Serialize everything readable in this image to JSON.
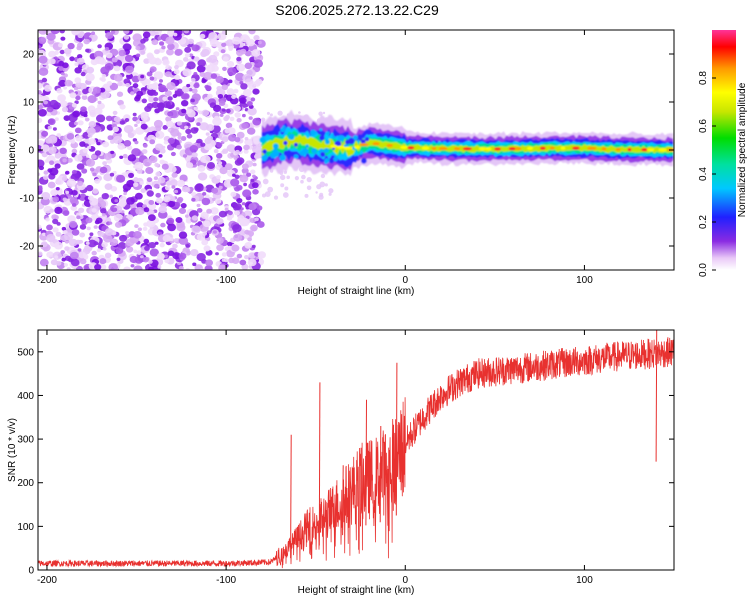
{
  "title": "S206.2025.272.13.22.C29",
  "chart_data": [
    {
      "type": "heatmap",
      "name": "spectrogram",
      "xlabel": "Height of straight line (km)",
      "ylabel": "Frequency (Hz)",
      "xlim": [
        -205,
        150
      ],
      "ylim": [
        -25,
        25
      ],
      "xticks": [
        -200,
        -100,
        0,
        100
      ],
      "yticks": [
        -20,
        -10,
        0,
        10,
        20
      ],
      "noise_region_x": [
        -205,
        -80
      ],
      "signal_ridge": [
        {
          "x": -80,
          "y": 0.5
        },
        {
          "x": -70,
          "y": 1.5
        },
        {
          "x": -60,
          "y": 2.0
        },
        {
          "x": -50,
          "y": 1.0
        },
        {
          "x": -40,
          "y": 0.8
        },
        {
          "x": -30,
          "y": 0.2
        },
        {
          "x": -20,
          "y": 1.5
        },
        {
          "x": -10,
          "y": 1.0
        },
        {
          "x": 0,
          "y": 0.5
        },
        {
          "x": 20,
          "y": 0.3
        },
        {
          "x": 50,
          "y": 0.2
        },
        {
          "x": 80,
          "y": 0.4
        },
        {
          "x": 100,
          "y": 0.4
        },
        {
          "x": 120,
          "y": 0.1
        },
        {
          "x": 150,
          "y": 0.0
        }
      ],
      "colorbar": {
        "label": "Normalized spectral amplitude",
        "range": [
          0,
          1
        ],
        "ticks": [
          "0.0",
          "0.2",
          "0.4",
          "0.6",
          "0.8"
        ],
        "tick_values": [
          0.0,
          0.2,
          0.4,
          0.6,
          0.8
        ],
        "colormap": [
          "#ffffff",
          "#e9c8f7",
          "#8a2be2",
          "#2020ff",
          "#00c8ff",
          "#00e0a0",
          "#00dd00",
          "#c8e600",
          "#ffff00",
          "#ff9900",
          "#ff0000",
          "#ff3399"
        ]
      }
    },
    {
      "type": "line",
      "name": "snr",
      "xlabel": "Height of straight line (km)",
      "ylabel": "SNR (10 * v/v)",
      "xlim": [
        -205,
        150
      ],
      "ylim": [
        0,
        550
      ],
      "xticks": [
        -200,
        -100,
        0,
        100
      ],
      "yticks": [
        0,
        100,
        200,
        300,
        400,
        500
      ],
      "color": "#e8312f",
      "trend": [
        {
          "x": -205,
          "y": 15
        },
        {
          "x": -100,
          "y": 15
        },
        {
          "x": -75,
          "y": 18
        },
        {
          "x": -65,
          "y": 50
        },
        {
          "x": -55,
          "y": 95
        },
        {
          "x": -45,
          "y": 120
        },
        {
          "x": -35,
          "y": 160
        },
        {
          "x": -25,
          "y": 200
        },
        {
          "x": -15,
          "y": 215
        },
        {
          "x": -5,
          "y": 250
        },
        {
          "x": 0,
          "y": 290
        },
        {
          "x": 10,
          "y": 350
        },
        {
          "x": 20,
          "y": 400
        },
        {
          "x": 30,
          "y": 430
        },
        {
          "x": 40,
          "y": 450
        },
        {
          "x": 60,
          "y": 460
        },
        {
          "x": 80,
          "y": 470
        },
        {
          "x": 100,
          "y": 480
        },
        {
          "x": 120,
          "y": 490
        },
        {
          "x": 150,
          "y": 500
        }
      ],
      "spikes": [
        {
          "x": -64,
          "y": 310
        },
        {
          "x": -48,
          "y": 430
        },
        {
          "x": -35,
          "y": 240
        },
        {
          "x": -25,
          "y": 280
        },
        {
          "x": -22,
          "y": 390
        },
        {
          "x": -14,
          "y": 330
        },
        {
          "x": -5,
          "y": 475
        },
        {
          "x": 140,
          "y": 550
        }
      ]
    }
  ]
}
